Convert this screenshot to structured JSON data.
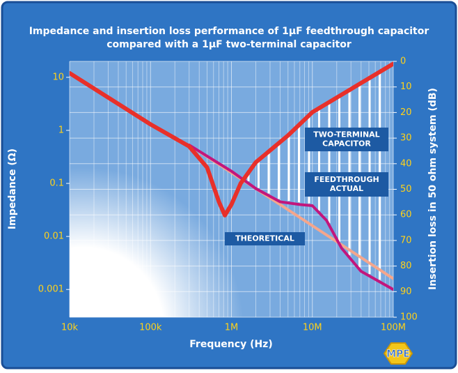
{
  "chart_data": {
    "type": "line",
    "title": [
      "Impedance and insertion loss performance of 1µF feedthrough capacitor",
      "compared with a 1µF two-terminal capacitor"
    ],
    "xlabel": "Frequency (Hz)",
    "ylabel": "Impedance (Ω)",
    "y2label": "Insertion loss in 50 ohm system (dB)",
    "xscale": "log",
    "yscale": "log",
    "xlim": [
      10000,
      100000000
    ],
    "xticks": [
      {
        "value": 10000,
        "label": "10k"
      },
      {
        "value": 100000,
        "label": "100k"
      },
      {
        "value": 1000000,
        "label": "1M"
      },
      {
        "value": 10000000,
        "label": "10M"
      },
      {
        "value": 100000000,
        "label": "100M"
      }
    ],
    "ylim": [
      0.0003,
      20
    ],
    "yticks": [
      10,
      1,
      0.1,
      0.01,
      0.001
    ],
    "y2lim": [
      0,
      100
    ],
    "y2ticks": [
      0,
      10,
      20,
      30,
      40,
      50,
      60,
      70,
      80,
      90,
      100
    ],
    "grid": true,
    "series": [
      {
        "color": "#f5a68c",
        "x": [
          300000,
          100000000
        ],
        "values": [
          0.53,
          0.0016
        ]
      },
      {
        "color": "#c2167c",
        "x": [
          300000,
          1000000,
          2000000,
          4000000,
          7000000,
          10000000,
          15000000,
          23000000,
          40000000,
          100000000
        ],
        "values": [
          0.53,
          0.17,
          0.08,
          0.045,
          0.04,
          0.038,
          0.02,
          0.006,
          0.0022,
          0.001
        ]
      },
      {
        "color": "#e8302a",
        "x": [
          10000,
          100000,
          300000,
          500000,
          700000,
          830000,
          1000000,
          1300000,
          2000000,
          5000000,
          10000000,
          30000000,
          100000000
        ],
        "values": [
          12,
          1.3,
          0.5,
          0.2,
          0.045,
          0.025,
          0.04,
          0.1,
          0.25,
          0.8,
          2.2,
          6,
          18
        ]
      }
    ],
    "annotations": [
      {
        "lines": [
          "TWO-TERMINAL",
          "CAPACITOR"
        ]
      },
      {
        "lines": [
          "FEEDTHROUGH",
          "ACTUAL"
        ]
      },
      {
        "lines": [
          "THEORETICAL"
        ]
      }
    ],
    "logo": "MPE"
  }
}
